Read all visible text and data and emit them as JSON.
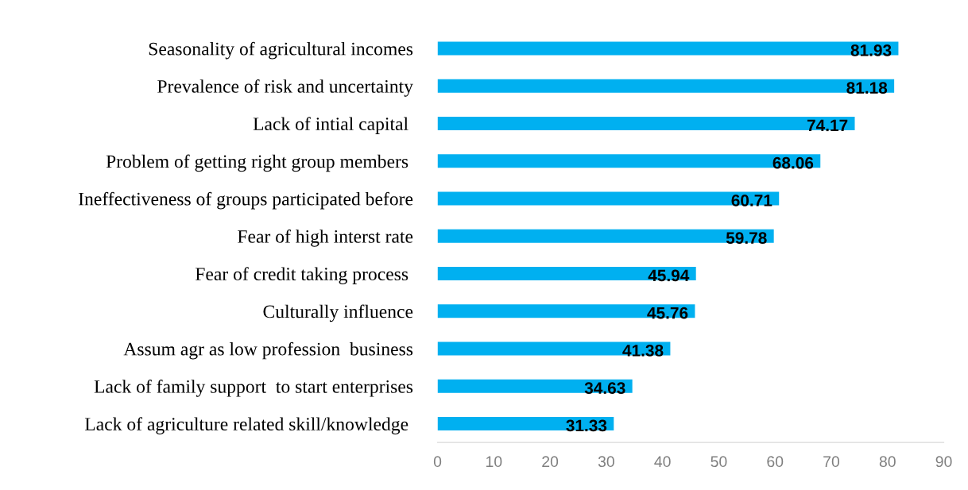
{
  "chart_data": {
    "type": "bar",
    "orientation": "horizontal",
    "categories": [
      "Seasonality of agricultural incomes",
      "Prevalence of risk and uncertainty",
      "Lack of intial capital ",
      "Problem of getting right group members ",
      "Ineffectiveness of groups participated before",
      "Fear of high interst rate",
      "Fear of credit taking process ",
      "Culturally influence",
      "Assum agr as low profession  business",
      "Lack of family support  to start enterprises",
      "Lack of agriculture related skill/knowledge "
    ],
    "values": [
      81.93,
      81.18,
      74.17,
      68.06,
      60.71,
      59.78,
      45.94,
      45.76,
      41.38,
      34.63,
      31.33
    ],
    "color": "#00b0f0",
    "data_labels": true,
    "xlim": [
      0,
      90
    ],
    "xticks": [
      0,
      10,
      20,
      30,
      40,
      50,
      60,
      70,
      80,
      90
    ],
    "grid": false,
    "legend": false
  }
}
